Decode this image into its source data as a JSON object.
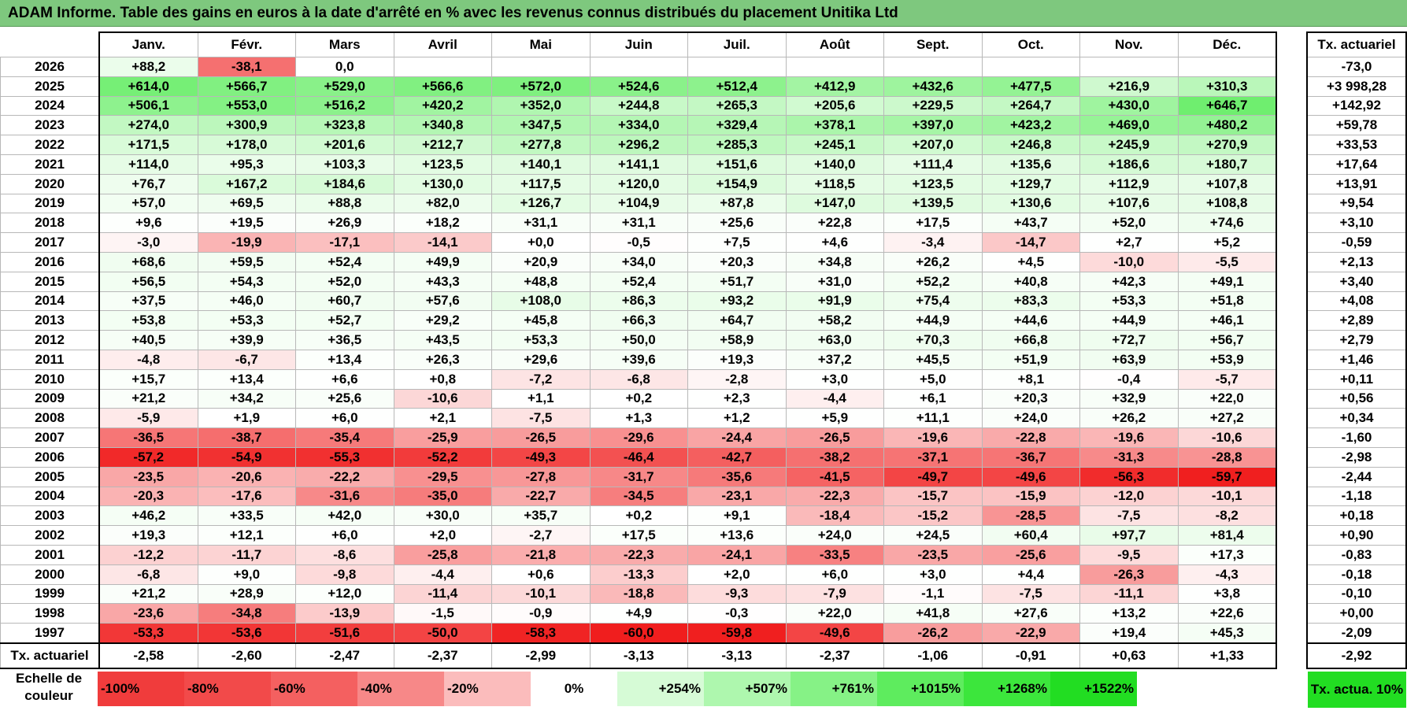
{
  "title": "ADAM Informe. Table des gains en euros à la date d'arrêté en % avec les revenus connus distribués du placement Unitika Ltd",
  "months": [
    "Janv.",
    "Févr.",
    "Mars",
    "Avril",
    "Mai",
    "Juin",
    "Juil.",
    "Août",
    "Sept.",
    "Oct.",
    "Nov.",
    "Déc."
  ],
  "side_header": "Tx. actuariel",
  "rows": [
    {
      "year": "2026",
      "values": [
        "+88,2",
        "-38,1",
        "0,0",
        "",
        "",
        "",
        "",
        "",
        "",
        "",
        "",
        ""
      ],
      "tx": "-73,0"
    },
    {
      "year": "2025",
      "values": [
        "+614,0",
        "+566,7",
        "+529,0",
        "+566,6",
        "+572,0",
        "+524,6",
        "+512,4",
        "+412,9",
        "+432,6",
        "+477,5",
        "+216,9",
        "+310,3"
      ],
      "tx": "+3 998,28"
    },
    {
      "year": "2024",
      "values": [
        "+506,1",
        "+553,0",
        "+516,2",
        "+420,2",
        "+352,0",
        "+244,8",
        "+265,3",
        "+205,6",
        "+229,5",
        "+264,7",
        "+430,0",
        "+646,7"
      ],
      "tx": "+142,92"
    },
    {
      "year": "2023",
      "values": [
        "+274,0",
        "+300,9",
        "+323,8",
        "+340,8",
        "+347,5",
        "+334,0",
        "+329,4",
        "+378,1",
        "+397,0",
        "+423,2",
        "+469,0",
        "+480,2"
      ],
      "tx": "+59,78"
    },
    {
      "year": "2022",
      "values": [
        "+171,5",
        "+178,0",
        "+201,6",
        "+212,7",
        "+277,8",
        "+296,2",
        "+285,3",
        "+245,1",
        "+207,0",
        "+246,8",
        "+245,9",
        "+270,9"
      ],
      "tx": "+33,53"
    },
    {
      "year": "2021",
      "values": [
        "+114,0",
        "+95,3",
        "+103,3",
        "+123,5",
        "+140,1",
        "+141,1",
        "+151,6",
        "+140,0",
        "+111,4",
        "+135,6",
        "+186,6",
        "+180,7"
      ],
      "tx": "+17,64"
    },
    {
      "year": "2020",
      "values": [
        "+76,7",
        "+167,2",
        "+184,6",
        "+130,0",
        "+117,5",
        "+120,0",
        "+154,9",
        "+118,5",
        "+123,5",
        "+129,7",
        "+112,9",
        "+107,8"
      ],
      "tx": "+13,91"
    },
    {
      "year": "2019",
      "values": [
        "+57,0",
        "+69,5",
        "+88,8",
        "+82,0",
        "+126,7",
        "+104,9",
        "+87,8",
        "+147,0",
        "+139,5",
        "+130,6",
        "+107,6",
        "+108,8"
      ],
      "tx": "+9,54"
    },
    {
      "year": "2018",
      "values": [
        "+9,6",
        "+19,5",
        "+26,9",
        "+18,2",
        "+31,1",
        "+31,1",
        "+25,6",
        "+22,8",
        "+17,5",
        "+43,7",
        "+52,0",
        "+74,6"
      ],
      "tx": "+3,10"
    },
    {
      "year": "2017",
      "values": [
        "-3,0",
        "-19,9",
        "-17,1",
        "-14,1",
        "+0,0",
        "-0,5",
        "+7,5",
        "+4,6",
        "-3,4",
        "-14,7",
        "+2,7",
        "+5,2"
      ],
      "tx": "-0,59"
    },
    {
      "year": "2016",
      "values": [
        "+68,6",
        "+59,5",
        "+52,4",
        "+49,9",
        "+20,9",
        "+34,0",
        "+20,3",
        "+34,8",
        "+26,2",
        "+4,5",
        "-10,0",
        "-5,5"
      ],
      "tx": "+2,13"
    },
    {
      "year": "2015",
      "values": [
        "+56,5",
        "+54,3",
        "+52,0",
        "+43,3",
        "+48,8",
        "+52,4",
        "+51,7",
        "+31,0",
        "+52,2",
        "+40,8",
        "+42,3",
        "+49,1"
      ],
      "tx": "+3,40"
    },
    {
      "year": "2014",
      "values": [
        "+37,5",
        "+46,0",
        "+60,7",
        "+57,6",
        "+108,0",
        "+86,3",
        "+93,2",
        "+91,9",
        "+75,4",
        "+83,3",
        "+53,3",
        "+51,8"
      ],
      "tx": "+4,08"
    },
    {
      "year": "2013",
      "values": [
        "+53,8",
        "+53,3",
        "+52,7",
        "+29,2",
        "+45,8",
        "+66,3",
        "+64,7",
        "+58,2",
        "+44,9",
        "+44,6",
        "+44,9",
        "+46,1"
      ],
      "tx": "+2,89"
    },
    {
      "year": "2012",
      "values": [
        "+40,5",
        "+39,9",
        "+36,5",
        "+43,5",
        "+53,3",
        "+50,0",
        "+58,9",
        "+63,0",
        "+70,3",
        "+66,8",
        "+72,7",
        "+56,7"
      ],
      "tx": "+2,79"
    },
    {
      "year": "2011",
      "values": [
        "-4,8",
        "-6,7",
        "+13,4",
        "+26,3",
        "+29,6",
        "+39,6",
        "+19,3",
        "+37,2",
        "+45,5",
        "+51,9",
        "+63,9",
        "+53,9"
      ],
      "tx": "+1,46"
    },
    {
      "year": "2010",
      "values": [
        "+15,7",
        "+13,4",
        "+6,6",
        "+0,8",
        "-7,2",
        "-6,8",
        "-2,8",
        "+3,0",
        "+5,0",
        "+8,1",
        "-0,4",
        "-5,7"
      ],
      "tx": "+0,11"
    },
    {
      "year": "2009",
      "values": [
        "+21,2",
        "+34,2",
        "+25,6",
        "-10,6",
        "+1,1",
        "+0,2",
        "+2,3",
        "-4,4",
        "+6,1",
        "+20,3",
        "+32,9",
        "+22,0"
      ],
      "tx": "+0,56"
    },
    {
      "year": "2008",
      "values": [
        "-5,9",
        "+1,9",
        "+6,0",
        "+2,1",
        "-7,5",
        "+1,3",
        "+1,2",
        "+5,9",
        "+11,1",
        "+24,0",
        "+26,2",
        "+27,2"
      ],
      "tx": "+0,34"
    },
    {
      "year": "2007",
      "values": [
        "-36,5",
        "-38,7",
        "-35,4",
        "-25,9",
        "-26,5",
        "-29,6",
        "-24,4",
        "-26,5",
        "-19,6",
        "-22,8",
        "-19,6",
        "-10,6"
      ],
      "tx": "-1,60"
    },
    {
      "year": "2006",
      "values": [
        "-57,2",
        "-54,9",
        "-55,3",
        "-52,2",
        "-49,3",
        "-46,4",
        "-42,7",
        "-38,2",
        "-37,1",
        "-36,7",
        "-31,3",
        "-28,8"
      ],
      "tx": "-2,98"
    },
    {
      "year": "2005",
      "values": [
        "-23,5",
        "-20,6",
        "-22,2",
        "-29,5",
        "-27,8",
        "-31,7",
        "-35,6",
        "-41,5",
        "-49,7",
        "-49,6",
        "-56,3",
        "-59,7"
      ],
      "tx": "-2,44"
    },
    {
      "year": "2004",
      "values": [
        "-20,3",
        "-17,6",
        "-31,6",
        "-35,0",
        "-22,7",
        "-34,5",
        "-23,1",
        "-22,3",
        "-15,7",
        "-15,9",
        "-12,0",
        "-10,1"
      ],
      "tx": "-1,18"
    },
    {
      "year": "2003",
      "values": [
        "+46,2",
        "+33,5",
        "+42,0",
        "+30,0",
        "+35,7",
        "+0,2",
        "+9,1",
        "-18,4",
        "-15,2",
        "-28,5",
        "-7,5",
        "-8,2"
      ],
      "tx": "+0,18"
    },
    {
      "year": "2002",
      "values": [
        "+19,3",
        "+12,1",
        "+6,0",
        "+2,0",
        "-2,7",
        "+17,5",
        "+13,6",
        "+24,0",
        "+24,5",
        "+60,4",
        "+97,7",
        "+81,4"
      ],
      "tx": "+0,90"
    },
    {
      "year": "2001",
      "values": [
        "-12,2",
        "-11,7",
        "-8,6",
        "-25,8",
        "-21,8",
        "-22,3",
        "-24,1",
        "-33,5",
        "-23,5",
        "-25,6",
        "-9,5",
        "+17,3"
      ],
      "tx": "-0,83"
    },
    {
      "year": "2000",
      "values": [
        "-6,8",
        "+9,0",
        "-9,8",
        "-4,4",
        "+0,6",
        "-13,3",
        "+2,0",
        "+6,0",
        "+3,0",
        "+4,4",
        "-26,3",
        "-4,3"
      ],
      "tx": "-0,18"
    },
    {
      "year": "1999",
      "values": [
        "+21,2",
        "+28,9",
        "+12,0",
        "-11,4",
        "-10,1",
        "-18,8",
        "-9,3",
        "-7,9",
        "-1,1",
        "-7,5",
        "-11,1",
        "+3,8"
      ],
      "tx": "-0,10"
    },
    {
      "year": "1998",
      "values": [
        "-23,6",
        "-34,8",
        "-13,9",
        "-1,5",
        "-0,9",
        "+4,9",
        "-0,3",
        "+22,0",
        "+41,8",
        "+27,6",
        "+13,2",
        "+22,6"
      ],
      "tx": "+0,00"
    },
    {
      "year": "1997",
      "values": [
        "-53,3",
        "-53,6",
        "-51,6",
        "-50,0",
        "-58,3",
        "-60,0",
        "-59,8",
        "-49,6",
        "-26,2",
        "-22,9",
        "+19,4",
        "+45,3"
      ],
      "tx": "-2,09"
    }
  ],
  "footer": {
    "label": "Tx. actuariel",
    "values": [
      "-2,58",
      "-2,60",
      "-2,47",
      "-2,37",
      "-2,99",
      "-3,13",
      "-3,13",
      "-2,37",
      "-1,06",
      "-0,91",
      "+0,63",
      "+1,33"
    ],
    "tx": "-2,92"
  },
  "scale": {
    "label": "Echelle de couleur",
    "items": [
      {
        "text": "-100%",
        "color": "#f03c3c",
        "align": "left"
      },
      {
        "text": "-80%",
        "color": "#f24a4a",
        "align": "left"
      },
      {
        "text": "-60%",
        "color": "#f46060",
        "align": "left"
      },
      {
        "text": "-40%",
        "color": "#f78888",
        "align": "left"
      },
      {
        "text": "-20%",
        "color": "#fbbcbc",
        "align": "left"
      },
      {
        "text": "0%",
        "color": "#ffffff",
        "align": "center"
      },
      {
        "text": "+254%",
        "color": "#d6fbd6",
        "align": "right"
      },
      {
        "text": "+507%",
        "color": "#aef7ae",
        "align": "right"
      },
      {
        "text": "+761%",
        "color": "#86f286",
        "align": "right"
      },
      {
        "text": "+1015%",
        "color": "#5eec5e",
        "align": "right"
      },
      {
        "text": "+1268%",
        "color": "#3ce63c",
        "align": "right"
      },
      {
        "text": "+1522%",
        "color": "#22dd22",
        "align": "right"
      }
    ],
    "actua_label": "Tx. actua. 10%",
    "actua_color": "#22dd22"
  }
}
